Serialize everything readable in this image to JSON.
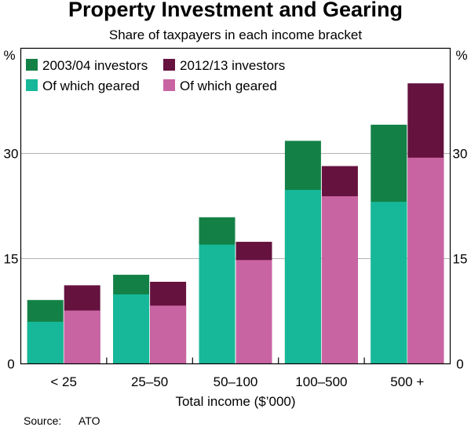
{
  "chart_data": {
    "type": "bar",
    "title": "Property Investment and Gearing",
    "subtitle": "Share of taxpayers in each income bracket",
    "xlabel": "Total income ($’000)",
    "ylabel": "%",
    "ylim": [
      0,
      45
    ],
    "yticks": [
      0,
      15,
      30
    ],
    "categories": [
      "< 25",
      "25–50",
      "50–100",
      "100–500",
      "500 +"
    ],
    "series": [
      {
        "name": "2003/04 investors",
        "color": "#138146",
        "values": [
          9.1,
          12.7,
          20.9,
          31.8,
          34.1
        ]
      },
      {
        "name": "2012/13 investors",
        "color": "#65123f",
        "values": [
          11.2,
          11.7,
          17.4,
          28.2,
          40.0
        ]
      },
      {
        "name": "Of which geared",
        "color": "#17b899",
        "values": [
          6.0,
          9.9,
          17.0,
          24.8,
          23.1
        ]
      },
      {
        "name": "Of which geared",
        "color": "#c964a3",
        "values": [
          7.6,
          8.3,
          14.8,
          23.9,
          29.4
        ]
      }
    ],
    "legend": [
      "2003/04 investors",
      "2012/13 investors",
      "Of which geared",
      "Of which geared"
    ],
    "legend_position": "top-left",
    "grid": true,
    "source_label": "Source:",
    "source": "ATO"
  }
}
